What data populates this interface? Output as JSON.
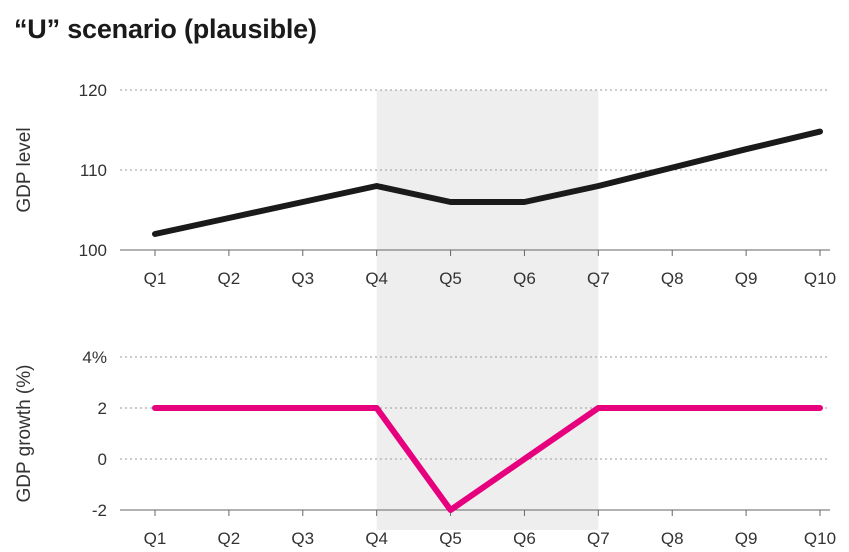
{
  "title": "“U” scenario (plausible)",
  "shaded_region": {
    "from": "Q4",
    "to": "Q7",
    "color": "#eeeeee"
  },
  "chart_data": [
    {
      "type": "line",
      "ylabel": "GDP level",
      "ylim": [
        100,
        120
      ],
      "yticks": [
        100,
        110,
        120
      ],
      "ytick_labels": [
        "100",
        "110",
        "120"
      ],
      "categories": [
        "Q1",
        "Q2",
        "Q3",
        "Q4",
        "Q5",
        "Q6",
        "Q7",
        "Q8",
        "Q9",
        "Q10"
      ],
      "series": [
        {
          "values": [
            102,
            104,
            106,
            108,
            106,
            106,
            108,
            110.3,
            112.6,
            114.8
          ],
          "color": "#1a1a1a"
        }
      ],
      "grid": "dotted horizontal"
    },
    {
      "type": "line",
      "ylabel": "GDP growth (%)",
      "ylim": [
        -2,
        4
      ],
      "yticks": [
        -2,
        0,
        2,
        4
      ],
      "ytick_labels": [
        "-2",
        "0",
        "2",
        "4%"
      ],
      "categories": [
        "Q1",
        "Q2",
        "Q3",
        "Q4",
        "Q5",
        "Q6",
        "Q7",
        "Q8",
        "Q9",
        "Q10"
      ],
      "series": [
        {
          "values": [
            2,
            2,
            2,
            2,
            -2,
            0,
            2,
            2,
            2,
            2
          ],
          "color": "#e6007e"
        }
      ],
      "grid": "dotted horizontal"
    }
  ]
}
